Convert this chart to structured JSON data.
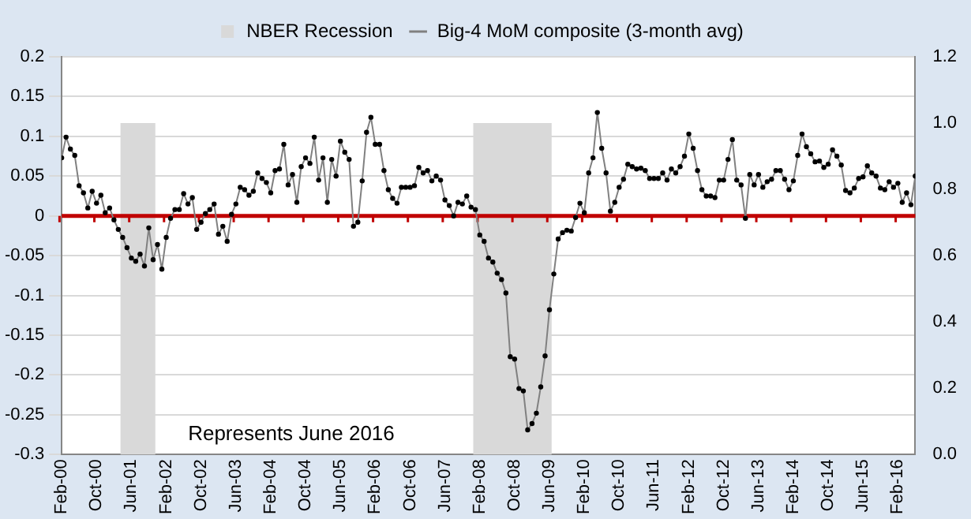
{
  "chart_data": {
    "type": "line",
    "x": [
      "2000-02",
      "2000-03",
      "2000-04",
      "2000-05",
      "2000-06",
      "2000-07",
      "2000-08",
      "2000-09",
      "2000-10",
      "2000-11",
      "2000-12",
      "2001-01",
      "2001-02",
      "2001-03",
      "2001-04",
      "2001-05",
      "2001-06",
      "2001-07",
      "2001-08",
      "2001-09",
      "2001-10",
      "2001-11",
      "2001-12",
      "2002-01",
      "2002-02",
      "2002-03",
      "2002-04",
      "2002-05",
      "2002-06",
      "2002-07",
      "2002-08",
      "2002-09",
      "2002-10",
      "2002-11",
      "2002-12",
      "2003-01",
      "2003-02",
      "2003-03",
      "2003-04",
      "2003-05",
      "2003-06",
      "2003-07",
      "2003-08",
      "2003-09",
      "2003-10",
      "2003-11",
      "2003-12",
      "2004-01",
      "2004-02",
      "2004-03",
      "2004-04",
      "2004-05",
      "2004-06",
      "2004-07",
      "2004-08",
      "2004-09",
      "2004-10",
      "2004-11",
      "2004-12",
      "2005-01",
      "2005-02",
      "2005-03",
      "2005-04",
      "2005-05",
      "2005-06",
      "2005-07",
      "2005-08",
      "2005-09",
      "2005-10",
      "2005-11",
      "2005-12",
      "2006-01",
      "2006-02",
      "2006-03",
      "2006-04",
      "2006-05",
      "2006-06",
      "2006-07",
      "2006-08",
      "2006-09",
      "2006-10",
      "2006-11",
      "2006-12",
      "2007-01",
      "2007-02",
      "2007-03",
      "2007-04",
      "2007-05",
      "2007-06",
      "2007-07",
      "2007-08",
      "2007-09",
      "2007-10",
      "2007-11",
      "2007-12",
      "2008-01",
      "2008-02",
      "2008-03",
      "2008-04",
      "2008-05",
      "2008-06",
      "2008-07",
      "2008-08",
      "2008-09",
      "2008-10",
      "2008-11",
      "2008-12",
      "2009-01",
      "2009-02",
      "2009-03",
      "2009-04",
      "2009-05",
      "2009-06",
      "2009-07",
      "2009-08",
      "2009-09",
      "2009-10",
      "2009-11",
      "2009-12",
      "2010-01",
      "2010-02",
      "2010-03",
      "2010-04",
      "2010-05",
      "2010-06",
      "2010-07",
      "2010-08",
      "2010-09",
      "2010-10",
      "2010-11",
      "2010-12",
      "2011-01",
      "2011-02",
      "2011-03",
      "2011-04",
      "2011-05",
      "2011-06",
      "2011-07",
      "2011-08",
      "2011-09",
      "2011-10",
      "2011-11",
      "2011-12",
      "2012-01",
      "2012-02",
      "2012-03",
      "2012-04",
      "2012-05",
      "2012-06",
      "2012-07",
      "2012-08",
      "2012-09",
      "2012-10",
      "2012-11",
      "2012-12",
      "2013-01",
      "2013-02",
      "2013-03",
      "2013-04",
      "2013-05",
      "2013-06",
      "2013-07",
      "2013-08",
      "2013-09",
      "2013-10",
      "2013-11",
      "2013-12",
      "2014-01",
      "2014-02",
      "2014-03",
      "2014-04",
      "2014-05",
      "2014-06",
      "2014-07",
      "2014-08",
      "2014-09",
      "2014-10",
      "2014-11",
      "2014-12",
      "2015-01",
      "2015-02",
      "2015-03",
      "2015-04",
      "2015-05",
      "2015-06",
      "2015-07",
      "2015-08",
      "2015-09",
      "2015-10",
      "2015-11",
      "2015-12",
      "2016-01",
      "2016-02",
      "2016-03",
      "2016-04",
      "2016-05",
      "2016-06"
    ],
    "series": [
      {
        "name": "Big-4 MoM composite (3-month avg)",
        "color": "#808080",
        "marker": "circle",
        "values": [
          0.073,
          0.099,
          0.084,
          0.076,
          0.038,
          0.029,
          0.01,
          0.031,
          0.016,
          0.026,
          0.004,
          0.01,
          -0.005,
          -0.017,
          -0.027,
          -0.04,
          -0.053,
          -0.057,
          -0.048,
          -0.063,
          -0.015,
          -0.055,
          -0.036,
          -0.067,
          -0.027,
          -0.003,
          0.008,
          0.008,
          0.028,
          0.015,
          0.023,
          -0.017,
          -0.008,
          0.003,
          0.008,
          0.015,
          -0.023,
          -0.013,
          -0.032,
          0.002,
          0.015,
          0.036,
          0.033,
          0.026,
          0.031,
          0.054,
          0.047,
          0.042,
          0.029,
          0.057,
          0.059,
          0.09,
          0.039,
          0.052,
          0.017,
          0.062,
          0.073,
          0.066,
          0.099,
          0.045,
          0.073,
          0.017,
          0.071,
          0.05,
          0.094,
          0.08,
          0.071,
          -0.013,
          -0.008,
          0.044,
          0.105,
          0.124,
          0.09,
          0.09,
          0.057,
          0.033,
          0.022,
          0.016,
          0.036,
          0.036,
          0.036,
          0.038,
          0.061,
          0.054,
          0.057,
          0.044,
          0.05,
          0.045,
          0.02,
          0.013,
          0.0,
          0.017,
          0.015,
          0.025,
          0.011,
          0.008,
          -0.024,
          -0.032,
          -0.053,
          -0.058,
          -0.072,
          -0.08,
          -0.097,
          -0.177,
          -0.18,
          -0.217,
          -0.22,
          -0.269,
          -0.261,
          -0.248,
          -0.215,
          -0.176,
          -0.118,
          -0.073,
          -0.029,
          -0.021,
          -0.018,
          -0.019,
          -0.002,
          0.016,
          0.004,
          0.054,
          0.073,
          0.13,
          0.085,
          0.054,
          0.006,
          0.017,
          0.036,
          0.046,
          0.065,
          0.062,
          0.059,
          0.06,
          0.057,
          0.047,
          0.047,
          0.047,
          0.054,
          0.045,
          0.059,
          0.054,
          0.062,
          0.075,
          0.103,
          0.085,
          0.057,
          0.033,
          0.025,
          0.025,
          0.023,
          0.045,
          0.045,
          0.071,
          0.096,
          0.045,
          0.039,
          -0.003,
          0.052,
          0.039,
          0.052,
          0.036,
          0.043,
          0.046,
          0.057,
          0.057,
          0.046,
          0.033,
          0.044,
          0.076,
          0.103,
          0.087,
          0.078,
          0.068,
          0.069,
          0.061,
          0.065,
          0.083,
          0.075,
          0.064,
          0.032,
          0.029,
          0.035,
          0.047,
          0.049,
          0.063,
          0.054,
          0.05,
          0.035,
          0.033,
          0.043,
          0.036,
          0.041,
          0.017,
          0.029,
          0.014,
          0.05
        ]
      }
    ],
    "xlim": [
      "2000-02",
      "2016-06"
    ],
    "xticks": [
      {
        "value": "2000-02",
        "label": "Feb-00"
      },
      {
        "value": "2000-10",
        "label": "Oct-00"
      },
      {
        "value": "2001-06",
        "label": "Jun-01"
      },
      {
        "value": "2002-02",
        "label": "Feb-02"
      },
      {
        "value": "2002-10",
        "label": "Oct-02"
      },
      {
        "value": "2003-06",
        "label": "Jun-03"
      },
      {
        "value": "2004-02",
        "label": "Feb-04"
      },
      {
        "value": "2004-10",
        "label": "Oct-04"
      },
      {
        "value": "2005-06",
        "label": "Jun-05"
      },
      {
        "value": "2006-02",
        "label": "Feb-06"
      },
      {
        "value": "2006-10",
        "label": "Oct-06"
      },
      {
        "value": "2007-06",
        "label": "Jun-07"
      },
      {
        "value": "2008-02",
        "label": "Feb-08"
      },
      {
        "value": "2008-10",
        "label": "Oct-08"
      },
      {
        "value": "2009-06",
        "label": "Jun-09"
      },
      {
        "value": "2010-02",
        "label": "Feb-10"
      },
      {
        "value": "2010-10",
        "label": "Oct-10"
      },
      {
        "value": "2011-06",
        "label": "Jun-11"
      },
      {
        "value": "2012-02",
        "label": "Feb-12"
      },
      {
        "value": "2012-10",
        "label": "Oct-12"
      },
      {
        "value": "2013-06",
        "label": "Jun-13"
      },
      {
        "value": "2014-02",
        "label": "Feb-14"
      },
      {
        "value": "2014-10",
        "label": "Oct-14"
      },
      {
        "value": "2015-06",
        "label": "Jun-15"
      },
      {
        "value": "2016-02",
        "label": "Feb-16"
      }
    ],
    "ylim": [
      -0.3,
      0.2
    ],
    "yticks": [
      -0.3,
      -0.25,
      -0.2,
      -0.15,
      -0.1,
      -0.05,
      0,
      0.05,
      0.1,
      0.15,
      0.2
    ],
    "y2lim": [
      0,
      1.2
    ],
    "y2ticks": [
      {
        "value": 0,
        "label": "0.0"
      },
      0.2,
      0.4,
      0.6,
      0.8,
      {
        "value": 1,
        "label": "1.0"
      },
      1.2
    ],
    "bands": [
      {
        "axis": "x",
        "from": "2001-04",
        "to": "2001-11",
        "label": "NBER Recession",
        "color": "#d9d9d9"
      },
      {
        "axis": "x",
        "from": "2008-01",
        "to": "2009-06",
        "color": "#d9d9d9"
      }
    ],
    "ref_lines": [
      {
        "axis": "y",
        "value": 0,
        "color": "#c00000"
      }
    ],
    "annotations": [
      "Represents June 2016"
    ],
    "grid": "y",
    "legend": "top"
  }
}
